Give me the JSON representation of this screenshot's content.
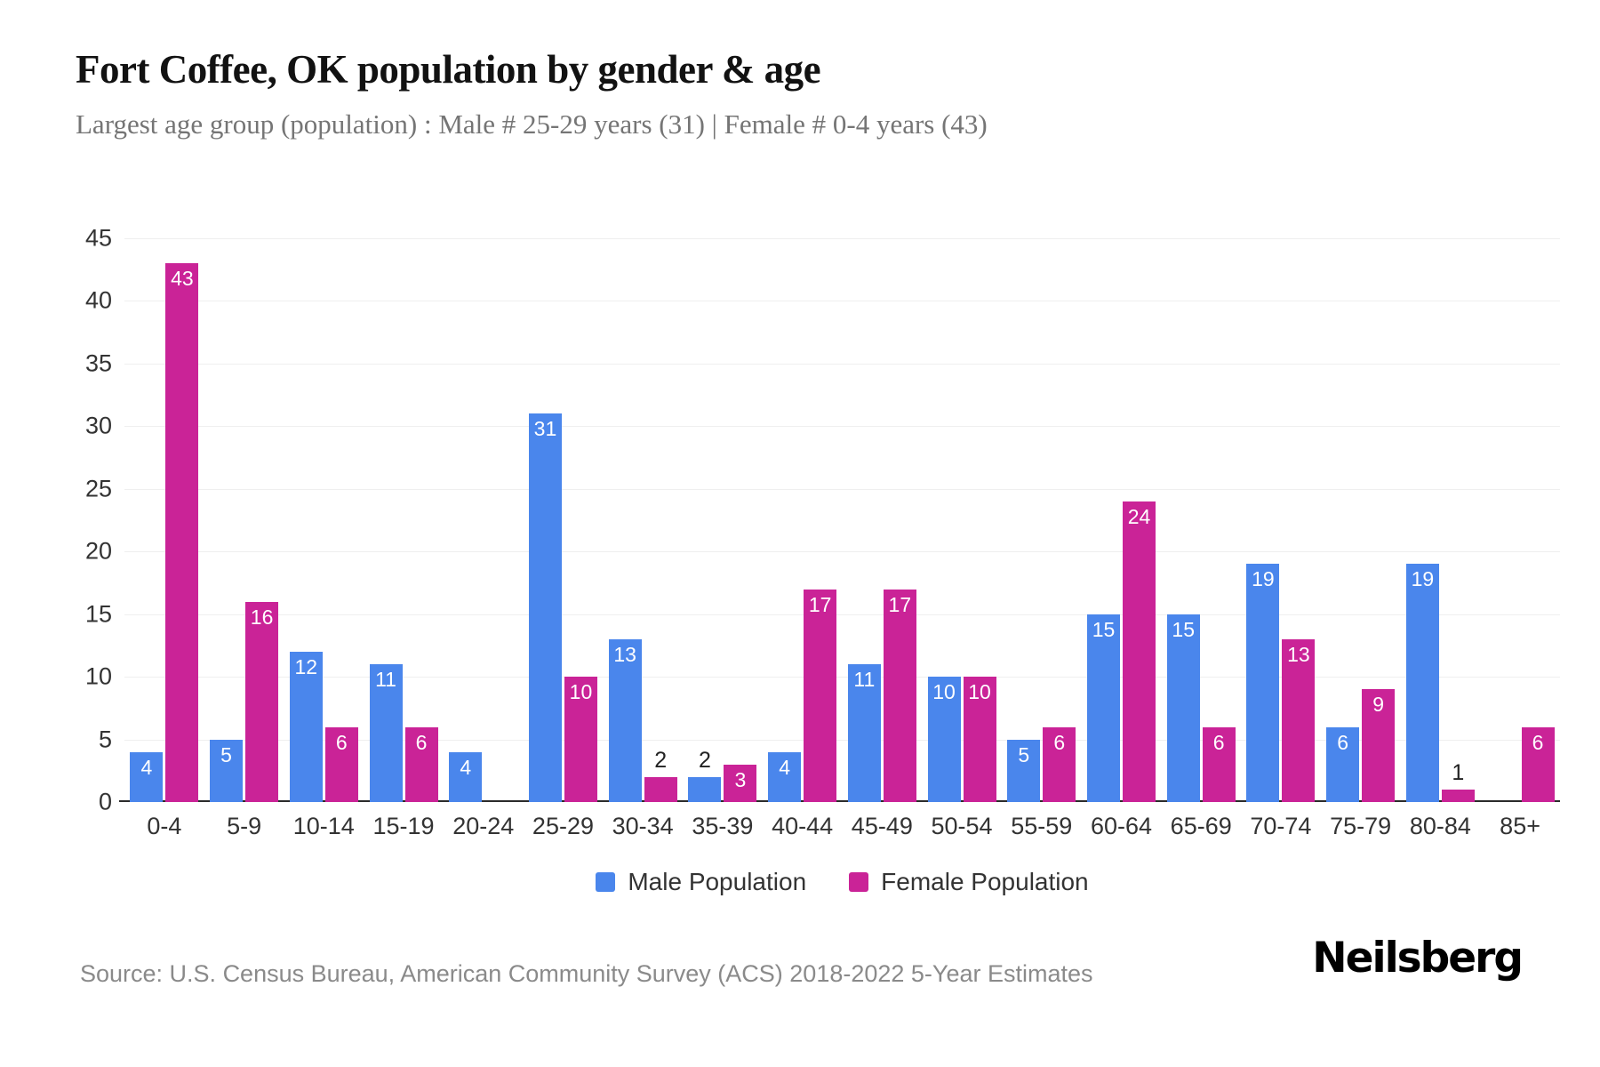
{
  "title": "Fort Coffee, OK population by gender & age",
  "subtitle": "Largest age group (population) : Male # 25-29 years (31) | Female # 0-4 years (43)",
  "source": "Source: U.S. Census Bureau, American Community Survey (ACS) 2018-2022 5-Year Estimates",
  "logo": "Neilsberg",
  "colors": {
    "male": "#4a86ec",
    "female": "#ca2397",
    "grid": "#efefef",
    "axis_line": "#2b2b2b",
    "value_label_inside": "#ffffff",
    "value_label_outside": "#222222"
  },
  "chart_data": {
    "type": "bar",
    "title": "Fort Coffee, OK population by gender & age",
    "xlabel": "",
    "ylabel": "",
    "ylim": [
      0,
      45
    ],
    "ytick_step": 5,
    "grid": "horizontal",
    "legend_position": "bottom",
    "label_outside_threshold": 2,
    "categories": [
      "0-4",
      "5-9",
      "10-14",
      "15-19",
      "20-24",
      "25-29",
      "30-34",
      "35-39",
      "40-44",
      "45-49",
      "50-54",
      "55-59",
      "60-64",
      "65-69",
      "70-74",
      "75-79",
      "80-84",
      "85+"
    ],
    "series": [
      {
        "name": "Male Population",
        "color_key": "male",
        "values": [
          4,
          5,
          12,
          11,
          4,
          31,
          13,
          2,
          4,
          11,
          10,
          5,
          15,
          15,
          19,
          6,
          19,
          0
        ]
      },
      {
        "name": "Female Population",
        "color_key": "female",
        "values": [
          43,
          16,
          6,
          6,
          0,
          10,
          2,
          3,
          17,
          17,
          10,
          6,
          24,
          6,
          13,
          9,
          1,
          6
        ]
      }
    ]
  }
}
